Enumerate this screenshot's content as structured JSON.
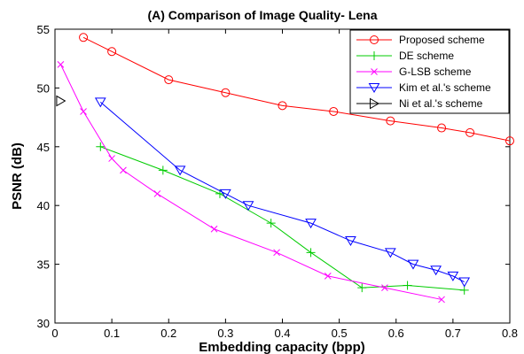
{
  "chart_data": {
    "type": "line",
    "title": "(A) Comparison of Image Quality- Lena",
    "xlabel": "Embedding capacity (bpp)",
    "ylabel": "PSNR (dB)",
    "xlim": [
      0,
      0.8
    ],
    "ylim": [
      30,
      55
    ],
    "xticks": [
      "0",
      "0.1",
      "0.2",
      "0.3",
      "0.4",
      "0.5",
      "0.6",
      "0.7",
      "0.8"
    ],
    "yticks": [
      "30",
      "35",
      "40",
      "45",
      "50",
      "55"
    ],
    "grid": false,
    "legend_position": "top-right",
    "series": [
      {
        "name": "Proposed scheme",
        "color": "#ff0000",
        "marker": "circle",
        "x": [
          0.05,
          0.1,
          0.2,
          0.3,
          0.4,
          0.49,
          0.59,
          0.68,
          0.73,
          0.8
        ],
        "y": [
          54.3,
          53.1,
          50.7,
          49.6,
          48.5,
          48.0,
          47.2,
          46.6,
          46.2,
          45.5
        ]
      },
      {
        "name": "DE scheme",
        "color": "#00cc00",
        "marker": "plus",
        "x": [
          0.08,
          0.19,
          0.29,
          0.38,
          0.45,
          0.54,
          0.62,
          0.72
        ],
        "y": [
          45.0,
          43.0,
          41.0,
          38.5,
          36.0,
          33.0,
          33.2,
          32.8
        ]
      },
      {
        "name": "G-LSB scheme",
        "color": "#ff00ff",
        "marker": "x",
        "x": [
          0.01,
          0.05,
          0.1,
          0.12,
          0.18,
          0.28,
          0.39,
          0.48,
          0.58,
          0.68
        ],
        "y": [
          52.0,
          48.0,
          44.0,
          43.0,
          41.0,
          38.0,
          36.0,
          34.0,
          33.0,
          32.0
        ]
      },
      {
        "name": "Kim et al.'s scheme",
        "color": "#0000ff",
        "marker": "triangle-down",
        "x": [
          0.08,
          0.22,
          0.3,
          0.34,
          0.45,
          0.52,
          0.59,
          0.63,
          0.67,
          0.7,
          0.72
        ],
        "y": [
          48.8,
          43.0,
          41.0,
          40.0,
          38.5,
          37.0,
          36.0,
          35.0,
          34.5,
          34.0,
          33.5
        ]
      },
      {
        "name": "Ni et al.'s scheme",
        "color": "#000000",
        "marker": "triangle-right",
        "x": [
          0.01
        ],
        "y": [
          48.9
        ]
      }
    ]
  }
}
